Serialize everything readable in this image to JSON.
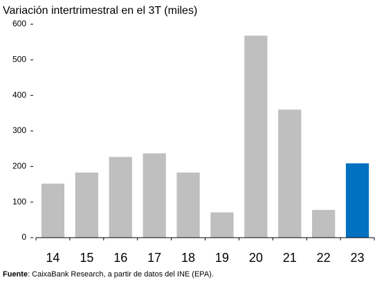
{
  "chart_data": {
    "type": "bar",
    "title": "Variación intertrimestral en el 3T (miles)",
    "categories": [
      "14",
      "15",
      "16",
      "17",
      "18",
      "19",
      "20",
      "21",
      "22",
      "23"
    ],
    "values": [
      152,
      183,
      227,
      237,
      183,
      71,
      568,
      360,
      78,
      209
    ],
    "colors": [
      "#bfbfbf",
      "#bfbfbf",
      "#bfbfbf",
      "#bfbfbf",
      "#bfbfbf",
      "#bfbfbf",
      "#bfbfbf",
      "#bfbfbf",
      "#bfbfbf",
      "#0070c0"
    ],
    "ylim": [
      0,
      600
    ],
    "yticks": [
      0,
      100,
      200,
      300,
      400,
      500,
      600
    ],
    "grid": false,
    "source_label": "Fuente",
    "source": ": CaixaBank Research, a partir de datos del INE (EPA)."
  }
}
